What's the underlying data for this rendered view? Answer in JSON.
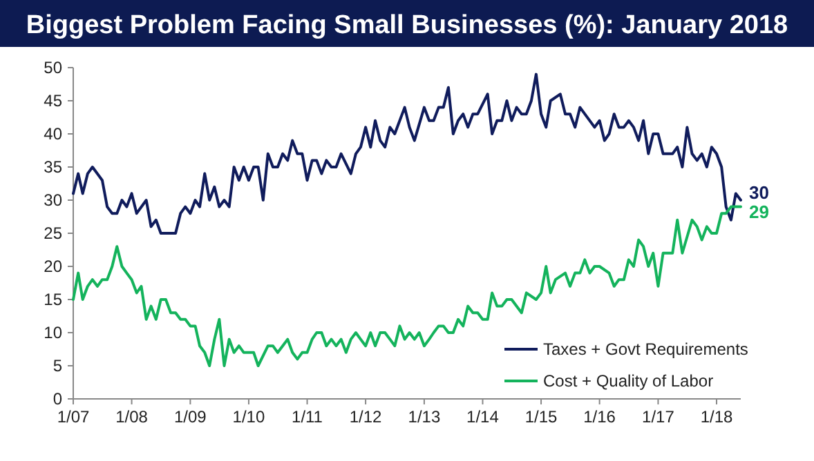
{
  "chart_data": {
    "type": "line",
    "title": "Biggest Problem Facing Small Businesses (%): January 2018",
    "xlim": [
      "2007-01",
      "2018-06"
    ],
    "xticks": [
      {
        "value": "2007-01",
        "label": "1/07"
      },
      {
        "value": "2008-01",
        "label": "1/08"
      },
      {
        "value": "2009-01",
        "label": "1/09"
      },
      {
        "value": "2010-01",
        "label": "1/10"
      },
      {
        "value": "2011-01",
        "label": "1/11"
      },
      {
        "value": "2012-01",
        "label": "1/12"
      },
      {
        "value": "2013-01",
        "label": "1/13"
      },
      {
        "value": "2014-01",
        "label": "1/14"
      },
      {
        "value": "2015-01",
        "label": "1/15"
      },
      {
        "value": "2016-01",
        "label": "1/16"
      },
      {
        "value": "2017-01",
        "label": "1/17"
      },
      {
        "value": "2018-01",
        "label": "1/18"
      }
    ],
    "ylim": [
      0,
      50
    ],
    "yticks": [
      0,
      5,
      10,
      15,
      20,
      25,
      30,
      35,
      40,
      45,
      50
    ],
    "grid": false,
    "legend": "bottom right",
    "marker": "none",
    "line_style": "solid",
    "annotations": [
      {
        "text": "30",
        "x": "2018-06",
        "y": 30
      },
      {
        "text": "29",
        "x": "2018-06",
        "y": 29
      }
    ],
    "series": [
      {
        "name": "Taxes + Govt Requirements",
        "color": "#101c5c",
        "x": [
          "2007-01",
          "2007-02",
          "2007-03",
          "2007-04",
          "2007-05",
          "2007-07",
          "2007-08",
          "2007-09",
          "2007-10",
          "2007-11",
          "2007-12",
          "2008-01",
          "2008-02",
          "2008-04",
          "2008-05",
          "2008-06",
          "2008-07",
          "2008-10",
          "2008-11",
          "2008-12",
          "2009-01",
          "2009-02",
          "2009-03",
          "2009-04",
          "2009-05",
          "2009-06",
          "2009-07",
          "2009-08",
          "2009-09",
          "2009-10",
          "2009-11",
          "2009-12",
          "2010-01",
          "2010-02",
          "2010-03",
          "2010-04",
          "2010-05",
          "2010-06",
          "2010-07",
          "2010-08",
          "2010-09",
          "2010-10",
          "2010-11",
          "2010-12",
          "2011-01",
          "2011-02",
          "2011-03",
          "2011-04",
          "2011-05",
          "2011-06",
          "2011-07",
          "2011-08",
          "2011-10",
          "2011-11",
          "2011-12",
          "2012-01",
          "2012-02",
          "2012-03",
          "2012-04",
          "2012-05",
          "2012-06",
          "2012-07",
          "2012-09",
          "2012-10",
          "2012-11",
          "2013-01",
          "2013-02",
          "2013-03",
          "2013-04",
          "2013-05",
          "2013-06",
          "2013-07",
          "2013-08",
          "2013-09",
          "2013-10",
          "2013-11",
          "2013-12",
          "2014-02",
          "2014-03",
          "2014-04",
          "2014-05",
          "2014-06",
          "2014-07",
          "2014-08",
          "2014-09",
          "2014-10",
          "2014-11",
          "2014-12",
          "2015-01",
          "2015-02",
          "2015-03",
          "2015-05",
          "2015-06",
          "2015-07",
          "2015-08",
          "2015-09",
          "2015-10",
          "2015-12",
          "2016-01",
          "2016-02",
          "2016-03",
          "2016-04",
          "2016-05",
          "2016-06",
          "2016-07",
          "2016-08",
          "2016-09",
          "2016-10",
          "2016-11",
          "2016-12",
          "2017-01",
          "2017-02",
          "2017-04",
          "2017-05",
          "2017-06",
          "2017-07",
          "2017-08",
          "2017-09",
          "2017-10",
          "2017-11",
          "2017-12",
          "2018-01",
          "2018-02",
          "2018-03",
          "2018-04",
          "2018-05",
          "2018-06"
        ],
        "values": [
          31,
          34,
          31,
          34,
          35,
          33,
          29,
          28,
          28,
          30,
          29,
          31,
          28,
          30,
          26,
          27,
          25,
          25,
          28,
          29,
          28,
          30,
          29,
          34,
          30,
          32,
          29,
          30,
          29,
          35,
          33,
          35,
          33,
          35,
          35,
          30,
          37,
          35,
          35,
          37,
          36,
          39,
          37,
          37,
          33,
          36,
          36,
          34,
          36,
          35,
          35,
          37,
          34,
          37,
          38,
          41,
          38,
          42,
          39,
          38,
          41,
          40,
          44,
          41,
          39,
          44,
          42,
          42,
          44,
          44,
          47,
          40,
          42,
          43,
          41,
          43,
          43,
          46,
          40,
          42,
          42,
          45,
          42,
          44,
          43,
          43,
          45,
          49,
          43,
          41,
          45,
          46,
          43,
          43,
          41,
          44,
          43,
          41,
          42,
          39,
          40,
          43,
          41,
          41,
          42,
          41,
          39,
          42,
          37,
          40,
          40,
          37,
          37,
          38,
          35,
          41,
          37,
          36,
          37,
          35,
          38,
          37,
          35,
          29,
          27,
          31,
          30
        ]
      },
      {
        "name": "Cost + Quality of Labor",
        "color": "#14b35c",
        "x": [
          "2007-01",
          "2007-02",
          "2007-03",
          "2007-04",
          "2007-05",
          "2007-06",
          "2007-07",
          "2007-08",
          "2007-09",
          "2007-10",
          "2007-11",
          "2007-12",
          "2008-01",
          "2008-02",
          "2008-03",
          "2008-04",
          "2008-05",
          "2008-06",
          "2008-07",
          "2008-08",
          "2008-09",
          "2008-10",
          "2008-11",
          "2008-12",
          "2009-01",
          "2009-02",
          "2009-03",
          "2009-04",
          "2009-05",
          "2009-06",
          "2009-07",
          "2009-08",
          "2009-09",
          "2009-10",
          "2009-11",
          "2009-12",
          "2010-02",
          "2010-03",
          "2010-05",
          "2010-06",
          "2010-07",
          "2010-08",
          "2010-09",
          "2010-10",
          "2010-11",
          "2010-12",
          "2011-01",
          "2011-02",
          "2011-03",
          "2011-04",
          "2011-05",
          "2011-06",
          "2011-07",
          "2011-08",
          "2011-09",
          "2011-10",
          "2011-11",
          "2011-12",
          "2012-01",
          "2012-02",
          "2012-03",
          "2012-04",
          "2012-05",
          "2012-06",
          "2012-07",
          "2012-08",
          "2012-09",
          "2012-10",
          "2012-11",
          "2012-12",
          "2013-01",
          "2013-02",
          "2013-03",
          "2013-04",
          "2013-05",
          "2013-06",
          "2013-07",
          "2013-08",
          "2013-09",
          "2013-10",
          "2013-11",
          "2013-12",
          "2014-01",
          "2014-02",
          "2014-03",
          "2014-04",
          "2014-05",
          "2014-06",
          "2014-07",
          "2014-09",
          "2014-10",
          "2014-12",
          "2015-01",
          "2015-02",
          "2015-03",
          "2015-04",
          "2015-06",
          "2015-07",
          "2015-08",
          "2015-09",
          "2015-10",
          "2015-11",
          "2015-12",
          "2016-01",
          "2016-03",
          "2016-04",
          "2016-05",
          "2016-06",
          "2016-07",
          "2016-08",
          "2016-09",
          "2016-10",
          "2016-11",
          "2016-12",
          "2017-01",
          "2017-02",
          "2017-04",
          "2017-05",
          "2017-06",
          "2017-08",
          "2017-09",
          "2017-10",
          "2017-11",
          "2017-12",
          "2018-01",
          "2018-02",
          "2018-03",
          "2018-04",
          "2018-06"
        ],
        "values": [
          15,
          19,
          15,
          17,
          18,
          17,
          18,
          18,
          20,
          23,
          20,
          19,
          18,
          16,
          17,
          12,
          14,
          12,
          15,
          15,
          13,
          13,
          12,
          12,
          11,
          11,
          8,
          7,
          5,
          9,
          12,
          5,
          9,
          7,
          8,
          7,
          7,
          5,
          8,
          8,
          7,
          8,
          9,
          7,
          6,
          7,
          7,
          9,
          10,
          10,
          8,
          9,
          8,
          9,
          7,
          9,
          10,
          9,
          8,
          10,
          8,
          10,
          10,
          9,
          8,
          11,
          9,
          10,
          9,
          10,
          8,
          9,
          10,
          11,
          11,
          10,
          10,
          12,
          11,
          14,
          13,
          13,
          12,
          12,
          16,
          14,
          14,
          15,
          15,
          13,
          16,
          15,
          16,
          20,
          16,
          18,
          19,
          17,
          19,
          19,
          21,
          19,
          20,
          20,
          19,
          17,
          18,
          18,
          21,
          20,
          24,
          23,
          20,
          22,
          17,
          22,
          22,
          27,
          22,
          27,
          26,
          24,
          26,
          25,
          25,
          28,
          28,
          29,
          29
        ]
      }
    ]
  }
}
